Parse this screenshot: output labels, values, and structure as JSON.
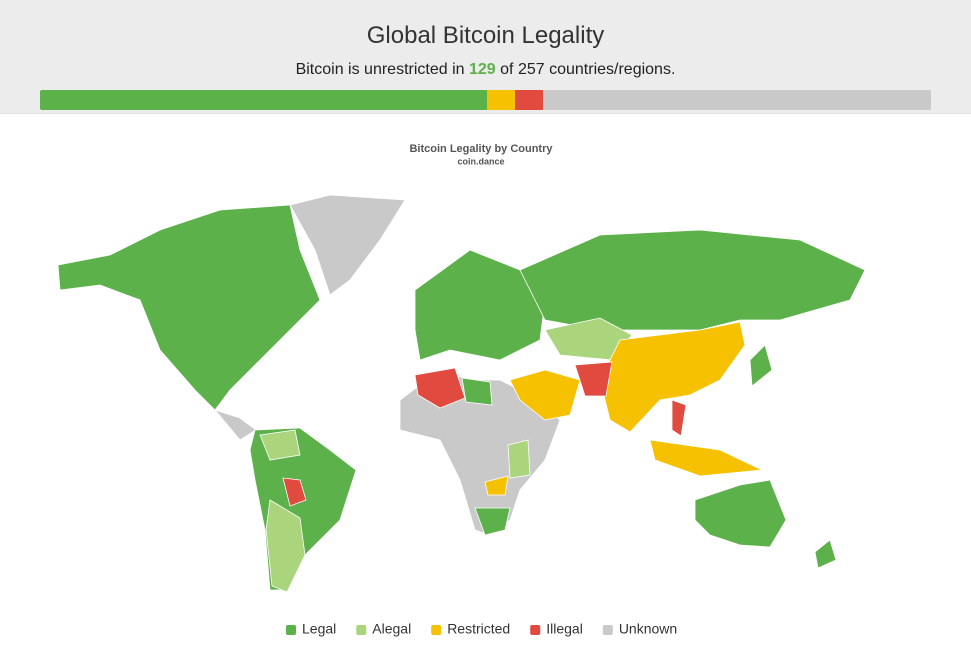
{
  "header": {
    "title": "Global Bitcoin Legality",
    "summary": {
      "prefix": "Bitcoin is unrestricted in",
      "count": 129,
      "middle": "of",
      "total": 257,
      "suffix": "countries/regions."
    },
    "bar": {
      "restricted": 8,
      "illegal": 8
    }
  },
  "map": {
    "title": "Bitcoin Legality by Country",
    "subtitle": "coin.dance",
    "legend": [
      {
        "name": "Legal",
        "color": "#5db14a"
      },
      {
        "name": "Alegal",
        "color": "#aad57c"
      },
      {
        "name": "Restricted",
        "color": "#f5c100"
      },
      {
        "name": "Illegal",
        "color": "#e04a3f"
      },
      {
        "name": "Unknown",
        "color": "#c9c9c9"
      }
    ]
  }
}
